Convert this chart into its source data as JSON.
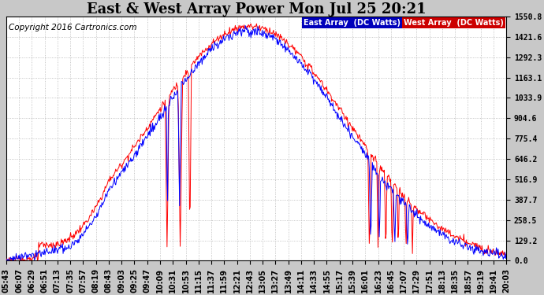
{
  "title": "East & West Array Power Mon Jul 25 20:21",
  "copyright": "Copyright 2016 Cartronics.com",
  "legend_east": "East Array  (DC Watts)",
  "legend_west": "West Array  (DC Watts)",
  "east_color": "#0000ff",
  "west_color": "#ff0000",
  "legend_east_bg": "#0000bb",
  "legend_west_bg": "#cc0000",
  "bg_color": "#c8c8c8",
  "plot_bg_color": "#ffffff",
  "grid_color": "#aaaaaa",
  "yticks": [
    0.0,
    129.2,
    258.5,
    387.7,
    516.9,
    646.2,
    775.4,
    904.6,
    1033.9,
    1163.1,
    1292.3,
    1421.6,
    1550.8
  ],
  "ymax": 1550.8,
  "ymin": 0.0,
  "xtick_labels": [
    "05:43",
    "06:07",
    "06:29",
    "06:51",
    "07:13",
    "07:35",
    "07:57",
    "08:19",
    "08:43",
    "09:03",
    "09:25",
    "09:47",
    "10:09",
    "10:31",
    "10:53",
    "11:15",
    "11:37",
    "11:59",
    "12:21",
    "12:43",
    "13:05",
    "13:27",
    "13:49",
    "14:11",
    "14:33",
    "14:55",
    "15:17",
    "15:39",
    "16:01",
    "16:23",
    "16:45",
    "17:07",
    "17:29",
    "17:51",
    "18:13",
    "18:35",
    "18:57",
    "19:19",
    "19:41",
    "20:03"
  ],
  "title_fontsize": 13,
  "axis_fontsize": 7,
  "copyright_fontsize": 7.5
}
